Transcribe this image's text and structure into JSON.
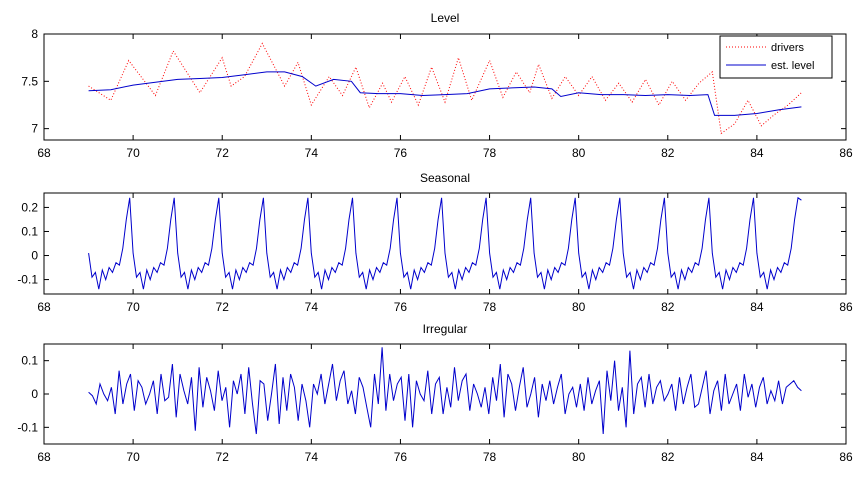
{
  "chart_data": [
    {
      "type": "line",
      "title": "Level",
      "xlim": [
        68,
        86
      ],
      "ylim": [
        6.88,
        8.0
      ],
      "xticks": [
        68,
        70,
        72,
        74,
        76,
        78,
        80,
        82,
        84,
        86
      ],
      "yticks": [
        7,
        7.5,
        8
      ],
      "legend": {
        "placement": "top-right"
      },
      "series": [
        {
          "name": "drivers",
          "style": "dotted",
          "color": "#ff0000",
          "x": [
            69.0,
            69.5,
            69.9,
            70.5,
            70.9,
            71.5,
            72.0,
            72.2,
            72.5,
            72.9,
            73.4,
            73.7,
            74.0,
            74.4,
            74.7,
            75.0,
            75.3,
            75.6,
            75.8,
            76.1,
            76.4,
            76.7,
            77.0,
            77.3,
            77.6,
            78.0,
            78.3,
            78.6,
            78.9,
            79.1,
            79.4,
            79.7,
            80.0,
            80.3,
            80.6,
            80.9,
            81.2,
            81.5,
            81.8,
            82.1,
            82.4,
            82.7,
            83.0,
            83.2,
            83.5,
            83.8,
            84.1,
            84.4,
            84.7,
            85.0
          ],
          "values": [
            7.45,
            7.3,
            7.72,
            7.35,
            7.82,
            7.38,
            7.75,
            7.45,
            7.55,
            7.9,
            7.45,
            7.7,
            7.25,
            7.55,
            7.35,
            7.65,
            7.22,
            7.48,
            7.28,
            7.55,
            7.25,
            7.65,
            7.28,
            7.75,
            7.3,
            7.72,
            7.33,
            7.6,
            7.38,
            7.68,
            7.32,
            7.55,
            7.35,
            7.55,
            7.3,
            7.48,
            7.28,
            7.52,
            7.25,
            7.5,
            7.3,
            7.48,
            7.6,
            6.95,
            7.05,
            7.3,
            7.03,
            7.15,
            7.25,
            7.38
          ]
        },
        {
          "name": "est. level",
          "style": "solid",
          "color": "#0000cc",
          "x": [
            69.0,
            69.5,
            70.0,
            70.5,
            71.0,
            71.5,
            72.0,
            72.5,
            73.0,
            73.4,
            73.8,
            74.1,
            74.5,
            74.9,
            75.1,
            75.5,
            76.0,
            76.5,
            77.0,
            77.5,
            78.0,
            78.5,
            79.0,
            79.4,
            79.6,
            80.0,
            80.5,
            81.0,
            81.5,
            82.0,
            82.5,
            82.9,
            83.05,
            83.5,
            84.0,
            84.5,
            85.0
          ],
          "values": [
            7.4,
            7.41,
            7.46,
            7.49,
            7.52,
            7.53,
            7.54,
            7.57,
            7.6,
            7.6,
            7.55,
            7.45,
            7.52,
            7.5,
            7.38,
            7.37,
            7.37,
            7.35,
            7.36,
            7.37,
            7.42,
            7.43,
            7.44,
            7.42,
            7.34,
            7.38,
            7.36,
            7.36,
            7.35,
            7.36,
            7.35,
            7.36,
            7.14,
            7.14,
            7.16,
            7.2,
            7.23
          ]
        }
      ]
    },
    {
      "type": "line",
      "title": "Seasonal",
      "xlim": [
        68,
        86
      ],
      "ylim": [
        -0.16,
        0.26
      ],
      "xticks": [
        68,
        70,
        72,
        74,
        76,
        78,
        80,
        82,
        84,
        86
      ],
      "yticks": [
        -0.1,
        0,
        0.1,
        0.2
      ],
      "series": [
        {
          "color": "#0000cc",
          "season_start": 69.0,
          "season_period": 1.0,
          "season_cycles": 16,
          "season_pattern": [
            0.01,
            -0.09,
            -0.07,
            -0.14,
            -0.06,
            -0.1,
            -0.05,
            -0.07,
            -0.03,
            -0.04,
            0.03,
            0.15,
            0.24
          ],
          "x_end": 85.0,
          "y_end": 0.23
        }
      ]
    },
    {
      "type": "line",
      "title": "Irregular",
      "xlim": [
        68,
        86
      ],
      "ylim": [
        -0.15,
        0.15
      ],
      "xticks": [
        68,
        70,
        72,
        74,
        76,
        78,
        80,
        82,
        84,
        86
      ],
      "yticks": [
        -0.1,
        0,
        0.1
      ],
      "series": [
        {
          "color": "#0000cc",
          "x_start": 69.0,
          "x_end": 85.0,
          "values": [
            0.005,
            -0.005,
            -0.03,
            0.03,
            0.0,
            -0.02,
            0.02,
            -0.06,
            0.07,
            -0.03,
            0.03,
            0.06,
            -0.05,
            0.04,
            0.02,
            -0.03,
            0.0,
            0.04,
            -0.06,
            0.06,
            -0.02,
            -0.01,
            0.09,
            -0.07,
            0.06,
            0.01,
            -0.03,
            0.05,
            -0.11,
            0.08,
            -0.04,
            0.05,
            0.01,
            -0.05,
            0.07,
            -0.02,
            0.02,
            -0.1,
            0.04,
            0.0,
            0.06,
            -0.06,
            0.08,
            -0.03,
            -0.12,
            0.04,
            0.03,
            -0.08,
            0.0,
            0.09,
            -0.09,
            0.05,
            -0.05,
            0.06,
            0.02,
            -0.08,
            0.03,
            -0.02,
            -0.1,
            0.03,
            0.0,
            0.06,
            -0.03,
            0.03,
            0.09,
            -0.02,
            0.04,
            0.07,
            -0.03,
            0.01,
            -0.06,
            0.05,
            0.02,
            -0.04,
            -0.1,
            0.06,
            -0.03,
            0.14,
            -0.05,
            0.06,
            -0.02,
            0.03,
            0.05,
            -0.08,
            0.06,
            -0.1,
            0.04,
            0.0,
            -0.02,
            0.07,
            -0.06,
            0.03,
            0.05,
            -0.06,
            0.02,
            -0.04,
            0.08,
            -0.02,
            0.04,
            0.06,
            -0.05,
            0.03,
            0.0,
            -0.04,
            0.02,
            -0.06,
            0.05,
            -0.02,
            0.09,
            -0.07,
            0.06,
            0.03,
            -0.05,
            0.02,
            0.08,
            -0.04,
            0.0,
            0.05,
            -0.07,
            0.03,
            -0.02,
            0.04,
            -0.03,
            0.02,
            0.06,
            -0.06,
            0.0,
            0.02,
            -0.04,
            0.03,
            -0.05,
            0.05,
            -0.03,
            0.01,
            0.04,
            -0.12,
            0.07,
            -0.02,
            0.1,
            -0.05,
            0.02,
            -0.1,
            0.13,
            -0.06,
            0.03,
            0.05,
            -0.04,
            0.06,
            -0.03,
            0.02,
            0.04,
            -0.02,
            0.0,
            0.03,
            -0.05,
            0.05,
            -0.03,
            0.02,
            0.06,
            -0.04,
            -0.03,
            0.02,
            0.07,
            -0.06,
            0.01,
            0.04,
            -0.05,
            0.06,
            -0.03,
            0.0,
            0.03,
            -0.05,
            0.06,
            -0.01,
            0.03,
            -0.04,
            0.02,
            0.05,
            -0.03,
            0.01,
            -0.02,
            0.04,
            -0.03,
            0.02,
            0.03,
            0.04,
            0.02,
            0.01
          ]
        }
      ]
    }
  ]
}
